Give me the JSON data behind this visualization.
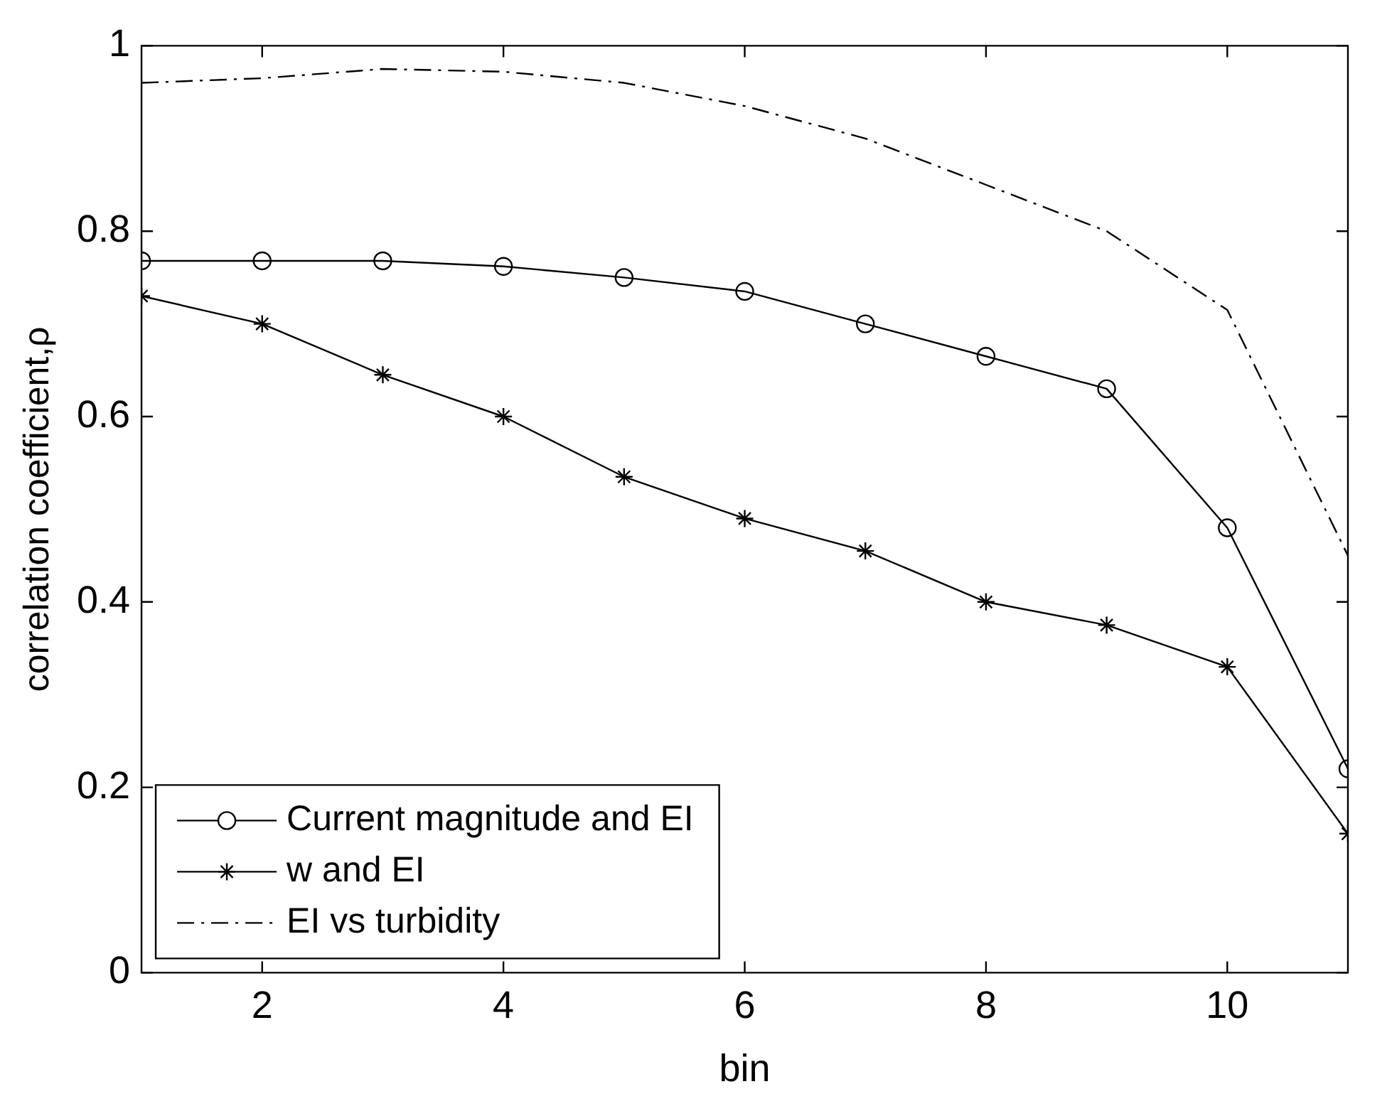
{
  "chart_data": {
    "type": "line",
    "xlabel": "bin",
    "ylabel": "correlation coefficient,ρ",
    "x": [
      1,
      2,
      3,
      4,
      5,
      6,
      7,
      8,
      9,
      10,
      11
    ],
    "series": [
      {
        "name": "Current magnitude and EI",
        "color": "#000000",
        "marker": "circle",
        "line_style": "solid",
        "values": [
          0.768,
          0.768,
          0.768,
          0.762,
          0.75,
          0.735,
          0.7,
          0.665,
          0.63,
          0.48,
          0.22
        ]
      },
      {
        "name": "w and EI",
        "color": "#000000",
        "marker": "cross",
        "line_style": "solid",
        "values": [
          0.73,
          0.7,
          0.645,
          0.6,
          0.535,
          0.49,
          0.455,
          0.4,
          0.375,
          0.33,
          0.15
        ]
      },
      {
        "name": "EI vs turbidity",
        "color": "#000000",
        "marker": "none",
        "line_style": "dashed",
        "values": [
          0.96,
          0.965,
          0.975,
          0.972,
          0.96,
          0.935,
          0.9,
          0.85,
          0.8,
          0.715,
          0.45
        ]
      }
    ],
    "xlim": [
      1,
      11
    ],
    "xticks": [
      2,
      4,
      6,
      8,
      10
    ],
    "ylim": [
      0,
      1
    ],
    "yticks": [
      0,
      0.2,
      0.4,
      0.6,
      0.8,
      1
    ],
    "grid": false,
    "legend": "bottom left"
  }
}
